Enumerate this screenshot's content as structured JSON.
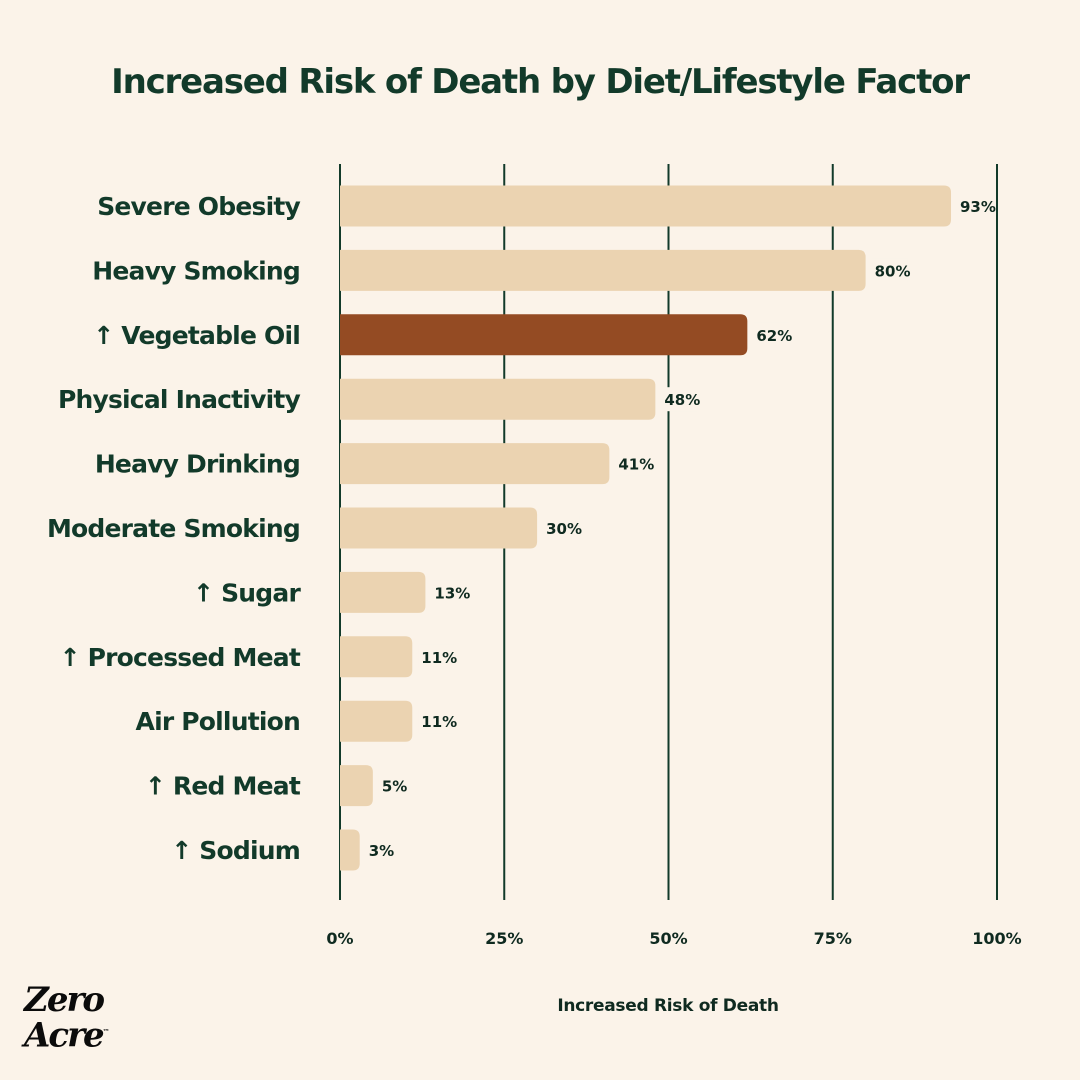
{
  "header": {
    "title": "Increased Risk of Death by Diet/Lifestyle Factor"
  },
  "brand": {
    "line1": "Zero",
    "line2": "Acre",
    "tm": "™"
  },
  "colors": {
    "background": "#fbf3e9",
    "bar": "#ebd3b1",
    "highlight_bar": "#944b23",
    "text": "#123a2a",
    "grid": "#123a2a"
  },
  "chart_data": {
    "type": "bar",
    "orientation": "horizontal",
    "title": "Increased Risk of Death by Diet/Lifestyle Factor",
    "xlabel": "Increased Risk of Death",
    "ylabel": "",
    "xlim": [
      0,
      100
    ],
    "grid": true,
    "x_ticks": [
      0,
      25,
      50,
      75,
      100
    ],
    "x_tick_labels": [
      "0%",
      "25%",
      "50%",
      "75%",
      "100%"
    ],
    "categories": [
      "Severe Obesity",
      "Heavy Smoking",
      "↑ Vegetable Oil",
      "Physical Inactivity",
      "Heavy Drinking",
      "Moderate Smoking",
      "↑ Sugar",
      "↑ Processed Meat",
      "Air Pollution",
      "↑ Red Meat",
      "↑ Sodium"
    ],
    "values": [
      93,
      80,
      62,
      48,
      41,
      30,
      13,
      11,
      11,
      5,
      3
    ],
    "value_labels": [
      "93%",
      "80%",
      "62%",
      "48%",
      "41%",
      "30%",
      "13%",
      "11%",
      "11%",
      "5%",
      "3%"
    ],
    "highlight": "↑ Vegetable Oil",
    "legend": "none"
  }
}
